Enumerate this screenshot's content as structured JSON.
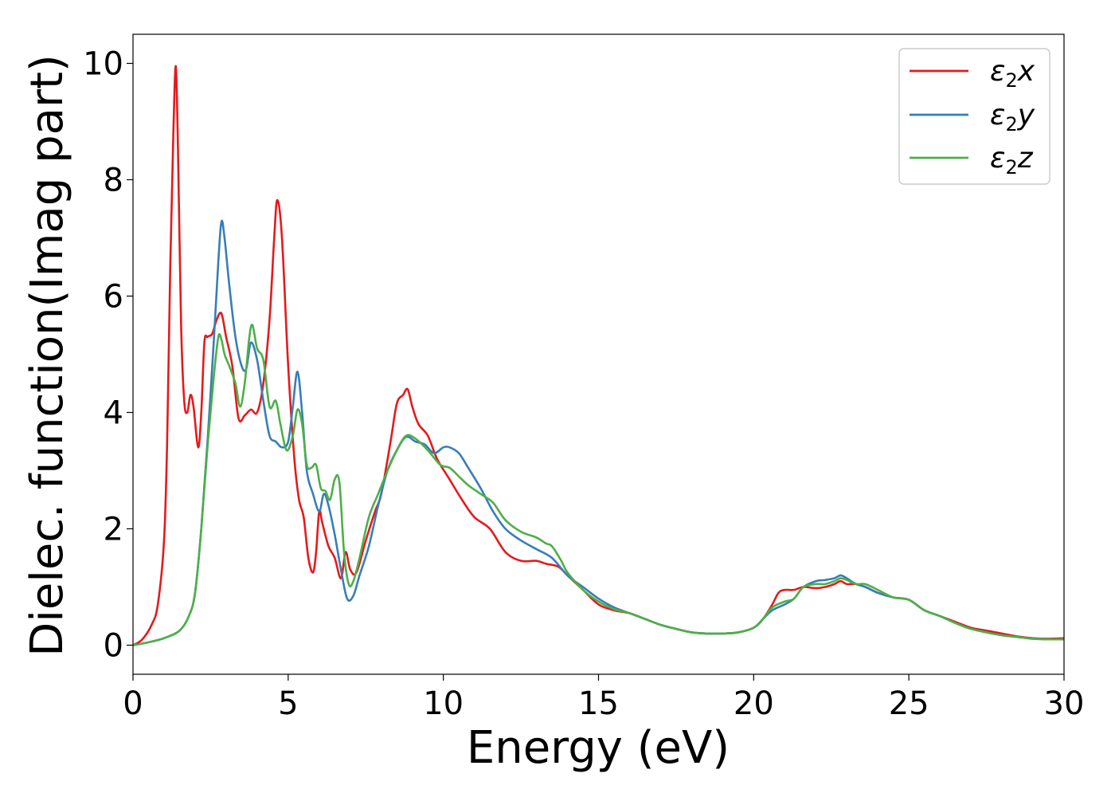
{
  "chart_data": {
    "type": "line",
    "xlabel": "Energy (eV)",
    "ylabel": "Dielec. function(Imag part)",
    "xlim": [
      0,
      30
    ],
    "ylim": [
      -0.5,
      10.5
    ],
    "xticks": [
      0,
      5,
      10,
      15,
      20,
      25,
      30
    ],
    "yticks": [
      0,
      2,
      4,
      6,
      8,
      10
    ],
    "grid": false,
    "legend_position": "top-right",
    "series": [
      {
        "name": "ε2x",
        "legend": {
          "symbol": "ε",
          "sub": "2",
          "axis": "x"
        },
        "color": "#e41a1c",
        "x": [
          0,
          0.3,
          0.6,
          0.8,
          1.0,
          1.1,
          1.2,
          1.3,
          1.38,
          1.45,
          1.55,
          1.65,
          1.75,
          1.85,
          1.95,
          2.1,
          2.2,
          2.3,
          2.4,
          2.55,
          2.7,
          2.85,
          3.0,
          3.2,
          3.4,
          3.6,
          3.8,
          4.0,
          4.2,
          4.4,
          4.55,
          4.65,
          4.8,
          5.0,
          5.2,
          5.35,
          5.5,
          5.65,
          5.8,
          5.9,
          6.0,
          6.1,
          6.3,
          6.5,
          6.7,
          6.85,
          7.0,
          7.2,
          7.5,
          7.8,
          8.0,
          8.3,
          8.5,
          8.7,
          8.85,
          9.0,
          9.2,
          9.5,
          9.8,
          10.2,
          10.6,
          11.0,
          11.5,
          12.0,
          12.5,
          13.0,
          13.3,
          13.7,
          14.0,
          14.5,
          15.0,
          15.5,
          16.0,
          16.5,
          17.0,
          17.5,
          18.0,
          18.5,
          19.0,
          19.5,
          20.0,
          20.3,
          20.6,
          20.8,
          21.0,
          21.3,
          21.6,
          22.0,
          22.3,
          22.6,
          22.8,
          23.0,
          23.3,
          23.6,
          24.0,
          24.5,
          25.0,
          25.5,
          26.0,
          26.5,
          27.0,
          27.5,
          28.0,
          28.5,
          29.0,
          29.5,
          30.0
        ],
        "y": [
          0.0,
          0.1,
          0.35,
          0.7,
          1.8,
          3.5,
          6.5,
          8.8,
          9.95,
          8.5,
          5.5,
          4.2,
          4.0,
          4.3,
          4.1,
          3.4,
          4.0,
          5.2,
          5.3,
          5.35,
          5.6,
          5.7,
          5.3,
          4.8,
          3.9,
          3.95,
          4.05,
          4.0,
          4.5,
          5.6,
          7.0,
          7.65,
          7.0,
          4.8,
          3.2,
          2.5,
          2.2,
          1.5,
          1.25,
          1.6,
          2.3,
          2.1,
          1.7,
          1.5,
          1.15,
          1.6,
          1.3,
          1.25,
          1.8,
          2.3,
          2.6,
          3.5,
          4.15,
          4.3,
          4.4,
          4.1,
          3.8,
          3.6,
          3.2,
          2.85,
          2.5,
          2.2,
          2.0,
          1.6,
          1.45,
          1.45,
          1.4,
          1.35,
          1.2,
          0.95,
          0.7,
          0.6,
          0.55,
          0.45,
          0.35,
          0.28,
          0.22,
          0.2,
          0.2,
          0.22,
          0.3,
          0.45,
          0.7,
          0.9,
          0.95,
          0.95,
          1.0,
          0.98,
          1.0,
          1.05,
          1.1,
          1.05,
          1.05,
          1.0,
          0.9,
          0.82,
          0.78,
          0.6,
          0.5,
          0.4,
          0.3,
          0.25,
          0.2,
          0.15,
          0.12,
          0.11,
          0.12
        ]
      },
      {
        "name": "ε2y",
        "legend": {
          "symbol": "ε",
          "sub": "2",
          "axis": "y"
        },
        "color": "#377eb8",
        "x": [
          0,
          0.5,
          1.0,
          1.5,
          1.8,
          2.0,
          2.2,
          2.4,
          2.6,
          2.75,
          2.85,
          2.95,
          3.1,
          3.3,
          3.5,
          3.65,
          3.8,
          4.0,
          4.2,
          4.4,
          4.6,
          4.8,
          5.0,
          5.15,
          5.3,
          5.45,
          5.6,
          5.8,
          6.0,
          6.15,
          6.3,
          6.5,
          6.7,
          6.9,
          7.1,
          7.3,
          7.6,
          7.9,
          8.2,
          8.5,
          8.8,
          9.1,
          9.4,
          9.7,
          10.0,
          10.2,
          10.5,
          10.8,
          11.2,
          11.6,
          12.0,
          12.5,
          13.0,
          13.5,
          14.0,
          14.5,
          15.0,
          15.5,
          16.0,
          16.5,
          17.0,
          17.5,
          18.0,
          18.5,
          19.0,
          19.5,
          20.0,
          20.3,
          20.6,
          21.0,
          21.3,
          21.6,
          22.0,
          22.3,
          22.6,
          22.8,
          23.0,
          23.3,
          23.6,
          24.0,
          24.5,
          25.0,
          25.5,
          26.0,
          26.5,
          27.0,
          27.5,
          28.0,
          28.5,
          29.0,
          29.5,
          30.0
        ],
        "y": [
          0.0,
          0.05,
          0.12,
          0.25,
          0.5,
          0.9,
          2.0,
          3.5,
          5.2,
          6.6,
          7.28,
          7.0,
          6.2,
          5.3,
          4.8,
          4.75,
          5.2,
          4.9,
          4.2,
          3.6,
          3.5,
          3.4,
          3.5,
          4.1,
          4.7,
          4.0,
          3.0,
          2.6,
          2.3,
          2.6,
          2.4,
          1.9,
          1.3,
          0.8,
          0.85,
          1.2,
          1.7,
          2.4,
          3.0,
          3.35,
          3.58,
          3.5,
          3.45,
          3.3,
          3.4,
          3.4,
          3.3,
          3.05,
          2.7,
          2.3,
          2.0,
          1.8,
          1.65,
          1.5,
          1.2,
          1.0,
          0.8,
          0.65,
          0.55,
          0.45,
          0.35,
          0.28,
          0.22,
          0.2,
          0.2,
          0.22,
          0.3,
          0.45,
          0.6,
          0.7,
          0.8,
          1.0,
          1.1,
          1.12,
          1.15,
          1.2,
          1.15,
          1.05,
          1.0,
          0.9,
          0.82,
          0.78,
          0.6,
          0.5,
          0.38,
          0.28,
          0.22,
          0.17,
          0.14,
          0.11,
          0.1,
          0.1
        ]
      },
      {
        "name": "ε2z",
        "legend": {
          "symbol": "ε",
          "sub": "2",
          "axis": "z"
        },
        "color": "#4daf4a",
        "x": [
          0,
          0.5,
          1.0,
          1.5,
          1.8,
          2.0,
          2.2,
          2.4,
          2.6,
          2.75,
          2.85,
          2.95,
          3.1,
          3.3,
          3.45,
          3.6,
          3.75,
          3.85,
          4.0,
          4.2,
          4.4,
          4.6,
          4.75,
          4.95,
          5.15,
          5.3,
          5.45,
          5.6,
          5.75,
          5.9,
          6.05,
          6.2,
          6.35,
          6.5,
          6.65,
          6.8,
          6.95,
          7.1,
          7.3,
          7.6,
          7.9,
          8.2,
          8.5,
          8.8,
          9.1,
          9.5,
          9.9,
          10.2,
          10.5,
          10.8,
          11.2,
          11.6,
          12.0,
          12.5,
          13.0,
          13.3,
          13.5,
          13.8,
          14.0,
          14.5,
          15.0,
          15.5,
          16.0,
          16.5,
          17.0,
          17.5,
          18.0,
          18.5,
          19.0,
          19.5,
          20.0,
          20.3,
          20.6,
          21.0,
          21.3,
          21.6,
          22.0,
          22.3,
          22.6,
          22.8,
          23.0,
          23.3,
          23.6,
          24.0,
          24.5,
          25.0,
          25.5,
          26.0,
          26.5,
          27.0,
          27.5,
          28.0,
          28.5,
          29.0,
          29.5,
          30.0
        ],
        "y": [
          0.0,
          0.05,
          0.12,
          0.25,
          0.5,
          0.9,
          2.0,
          3.4,
          4.6,
          5.3,
          5.25,
          5.0,
          4.8,
          4.5,
          4.1,
          4.5,
          5.3,
          5.5,
          5.1,
          4.9,
          4.1,
          4.2,
          3.8,
          3.35,
          3.6,
          4.05,
          3.8,
          3.1,
          3.05,
          3.1,
          2.7,
          2.65,
          2.5,
          2.85,
          2.8,
          1.6,
          1.05,
          1.1,
          1.5,
          2.2,
          2.6,
          3.0,
          3.35,
          3.6,
          3.55,
          3.35,
          3.1,
          3.05,
          2.9,
          2.75,
          2.6,
          2.45,
          2.15,
          1.95,
          1.85,
          1.75,
          1.7,
          1.45,
          1.25,
          0.95,
          0.75,
          0.62,
          0.55,
          0.45,
          0.35,
          0.28,
          0.22,
          0.2,
          0.2,
          0.22,
          0.3,
          0.45,
          0.65,
          0.75,
          0.8,
          1.0,
          1.05,
          1.05,
          1.1,
          1.15,
          1.12,
          1.05,
          1.05,
          0.95,
          0.82,
          0.78,
          0.6,
          0.5,
          0.38,
          0.28,
          0.22,
          0.17,
          0.14,
          0.11,
          0.1,
          0.1
        ]
      }
    ]
  }
}
